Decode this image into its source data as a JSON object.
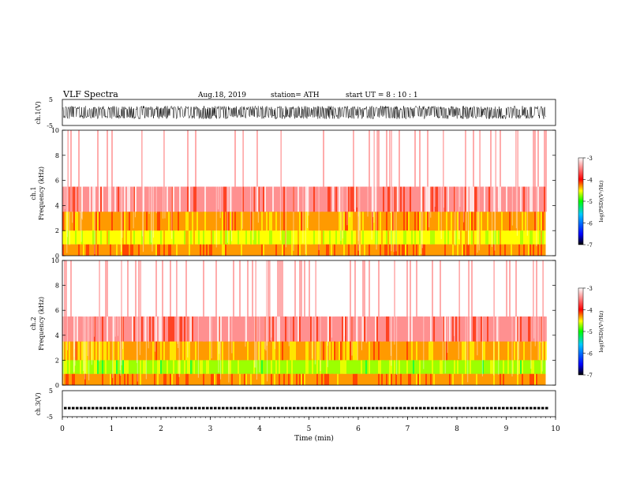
{
  "header": {
    "title": "VLF  Spectra",
    "date": "Aug.18, 2019",
    "station": "station= ATH",
    "start": "start  UT  =    8  : 10 : 1"
  },
  "colors": {
    "background_spec": "#ff6a6a",
    "colorbar": [
      "#000000",
      "#0000ff",
      "#00c8ff",
      "#00ff00",
      "#ffff00",
      "#ff0000",
      "#ffffff"
    ]
  },
  "chart_data": [
    {
      "type": "line",
      "name": "ch1-waveform",
      "ylabel": "ch.1(V)",
      "yticks": [
        "5",
        "-5"
      ],
      "ylim": [
        -5,
        5
      ],
      "xlim": [
        0,
        10
      ],
      "data_end_min": 9.8,
      "amplitude_envelope": 2.5,
      "grid": false
    },
    {
      "type": "heatmap",
      "name": "ch1-spectrogram",
      "ylabel": "ch.1\nFrequency  (kHz)",
      "ylabel_lines": [
        "ch.1",
        "Frequency  (kHz)"
      ],
      "yticks": [
        "0",
        "2",
        "4",
        "6",
        "8",
        "10"
      ],
      "ylim": [
        0,
        10
      ],
      "xlim": [
        0,
        10
      ],
      "data_end_min": 9.8,
      "colorbar": {
        "label": "log(PSD)(V²/Hz)",
        "ticks": [
          "-3",
          "-4",
          "-5",
          "-6",
          "-7"
        ],
        "range": [
          -7,
          -3
        ]
      },
      "bands": [
        {
          "f_low": 5.5,
          "f_high": 10.0,
          "level": -3.2
        },
        {
          "f_low": 3.5,
          "f_high": 5.5,
          "level": -3.5
        },
        {
          "f_low": 2.0,
          "f_high": 3.5,
          "level": -4.3
        },
        {
          "f_low": 0.9,
          "f_high": 2.0,
          "level": -4.7
        },
        {
          "f_low": 0.0,
          "f_high": 0.9,
          "level": -4.2
        }
      ]
    },
    {
      "type": "heatmap",
      "name": "ch2-spectrogram",
      "ylabel": "ch.2\nFrequency  (kHz)",
      "ylabel_lines": [
        "ch.2",
        "Frequency  (kHz)"
      ],
      "yticks": [
        "0",
        "2",
        "4",
        "6",
        "8",
        "10"
      ],
      "ylim": [
        0,
        10
      ],
      "xlim": [
        0,
        10
      ],
      "data_end_min": 9.8,
      "colorbar": {
        "label": "log(PSD)(V²/Hz)",
        "ticks": [
          "-3",
          "-4",
          "-5",
          "-6",
          "-7"
        ],
        "range": [
          -7,
          -3
        ]
      },
      "bands": [
        {
          "f_low": 5.5,
          "f_high": 10.0,
          "level": -3.2
        },
        {
          "f_low": 3.5,
          "f_high": 5.5,
          "level": -3.6
        },
        {
          "f_low": 2.0,
          "f_high": 3.5,
          "level": -4.4
        },
        {
          "f_low": 0.9,
          "f_high": 2.0,
          "level": -4.8
        },
        {
          "f_low": 0.0,
          "f_high": 0.9,
          "level": -4.2
        }
      ]
    },
    {
      "type": "line",
      "name": "ch3-waveform",
      "ylabel": "ch.3(V)",
      "yticks": [
        "5",
        "-5"
      ],
      "ylim": [
        -5,
        5
      ],
      "xlim": [
        0,
        10
      ],
      "data_end_min": 9.8,
      "level": -1.7,
      "xlabel": "Time  (min)",
      "xticks": [
        "0",
        "1",
        "2",
        "3",
        "4",
        "5",
        "6",
        "7",
        "8",
        "9",
        "10"
      ],
      "grid": false
    }
  ]
}
